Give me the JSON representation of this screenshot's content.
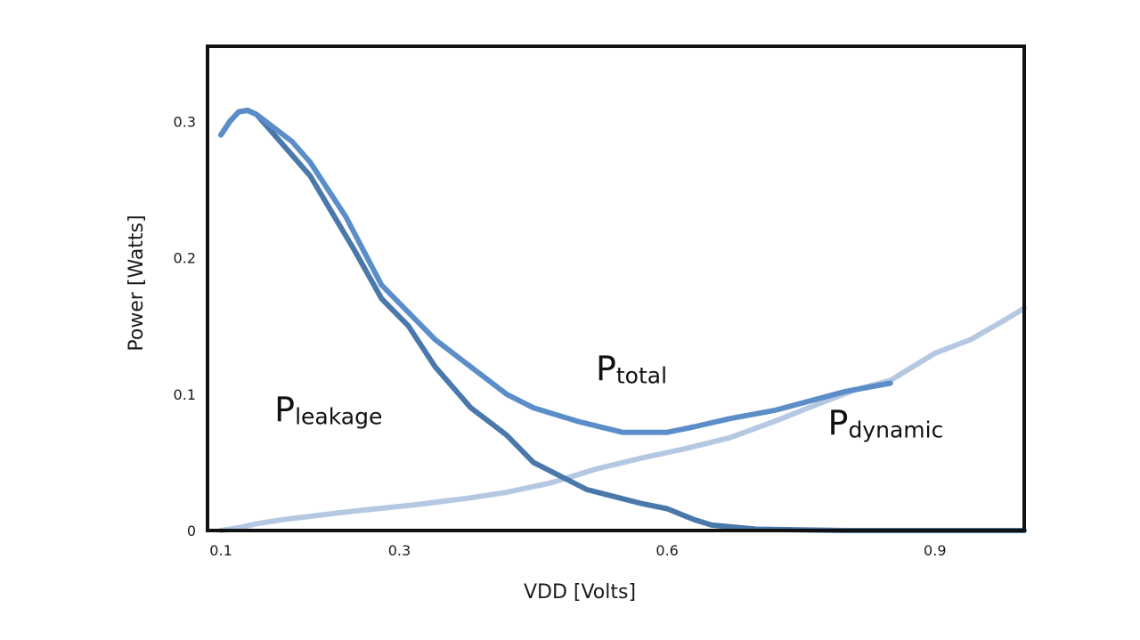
{
  "chart_data": {
    "type": "line",
    "xlabel": "VDD [Volts]",
    "ylabel": "Power [Watts]",
    "xlim": [
      0.085,
      1.0
    ],
    "ylim": [
      0,
      0.355
    ],
    "xticks": [
      {
        "value": 0.1,
        "label": "0.1"
      },
      {
        "value": 0.3,
        "label": "0.3"
      },
      {
        "value": 0.6,
        "label": "0.6"
      },
      {
        "value": 0.9,
        "label": "0.9"
      }
    ],
    "yticks": [
      {
        "value": 0,
        "label": "0"
      },
      {
        "value": 0.1,
        "label": "0.1"
      },
      {
        "value": 0.2,
        "label": "0.2"
      },
      {
        "value": 0.3,
        "label": "0.3"
      }
    ],
    "grid": false,
    "series": [
      {
        "key": "leakage",
        "color": "#4a78aa",
        "points": [
          [
            0.1,
            0.29
          ],
          [
            0.11,
            0.3
          ],
          [
            0.12,
            0.307
          ],
          [
            0.13,
            0.308
          ],
          [
            0.14,
            0.305
          ],
          [
            0.16,
            0.29
          ],
          [
            0.2,
            0.26
          ],
          [
            0.25,
            0.205
          ],
          [
            0.28,
            0.17
          ],
          [
            0.31,
            0.15
          ],
          [
            0.34,
            0.12
          ],
          [
            0.38,
            0.09
          ],
          [
            0.4,
            0.08
          ],
          [
            0.42,
            0.07
          ],
          [
            0.45,
            0.05
          ],
          [
            0.48,
            0.04
          ],
          [
            0.51,
            0.03
          ],
          [
            0.54,
            0.025
          ],
          [
            0.57,
            0.02
          ],
          [
            0.6,
            0.016
          ],
          [
            0.63,
            0.008
          ],
          [
            0.65,
            0.004
          ],
          [
            0.7,
            0.001
          ],
          [
            0.8,
            0.0
          ],
          [
            1.0,
            0.0
          ]
        ]
      },
      {
        "key": "total",
        "color": "#5b8ec9",
        "points": [
          [
            0.1,
            0.29
          ],
          [
            0.11,
            0.3
          ],
          [
            0.12,
            0.307
          ],
          [
            0.13,
            0.308
          ],
          [
            0.14,
            0.305
          ],
          [
            0.16,
            0.295
          ],
          [
            0.18,
            0.285
          ],
          [
            0.2,
            0.27
          ],
          [
            0.24,
            0.23
          ],
          [
            0.28,
            0.18
          ],
          [
            0.31,
            0.16
          ],
          [
            0.34,
            0.14
          ],
          [
            0.38,
            0.12
          ],
          [
            0.42,
            0.1
          ],
          [
            0.45,
            0.09
          ],
          [
            0.5,
            0.08
          ],
          [
            0.55,
            0.072
          ],
          [
            0.6,
            0.072
          ],
          [
            0.63,
            0.076
          ],
          [
            0.67,
            0.082
          ],
          [
            0.72,
            0.088
          ],
          [
            0.76,
            0.095
          ],
          [
            0.8,
            0.102
          ],
          [
            0.85,
            0.108
          ]
        ]
      },
      {
        "key": "dynamic",
        "color": "#b5c8e2",
        "points": [
          [
            0.1,
            0.0
          ],
          [
            0.12,
            0.002
          ],
          [
            0.14,
            0.005
          ],
          [
            0.17,
            0.008
          ],
          [
            0.22,
            0.012
          ],
          [
            0.26,
            0.015
          ],
          [
            0.32,
            0.019
          ],
          [
            0.38,
            0.024
          ],
          [
            0.42,
            0.028
          ],
          [
            0.47,
            0.035
          ],
          [
            0.52,
            0.045
          ],
          [
            0.57,
            0.053
          ],
          [
            0.62,
            0.06
          ],
          [
            0.67,
            0.068
          ],
          [
            0.72,
            0.08
          ],
          [
            0.77,
            0.093
          ],
          [
            0.81,
            0.103
          ],
          [
            0.85,
            0.11
          ],
          [
            0.9,
            0.13
          ],
          [
            0.94,
            0.14
          ],
          [
            0.98,
            0.155
          ],
          [
            1.0,
            0.163
          ]
        ]
      }
    ],
    "annotations": [
      {
        "series": "leakage",
        "main": "P",
        "sub": "leakage",
        "x": 0.16,
        "y": 0.08
      },
      {
        "series": "total",
        "main": "P",
        "sub": "total",
        "x": 0.52,
        "y": 0.11
      },
      {
        "series": "dynamic",
        "main": "P",
        "sub": "dynamic",
        "x": 0.78,
        "y": 0.07
      }
    ]
  }
}
